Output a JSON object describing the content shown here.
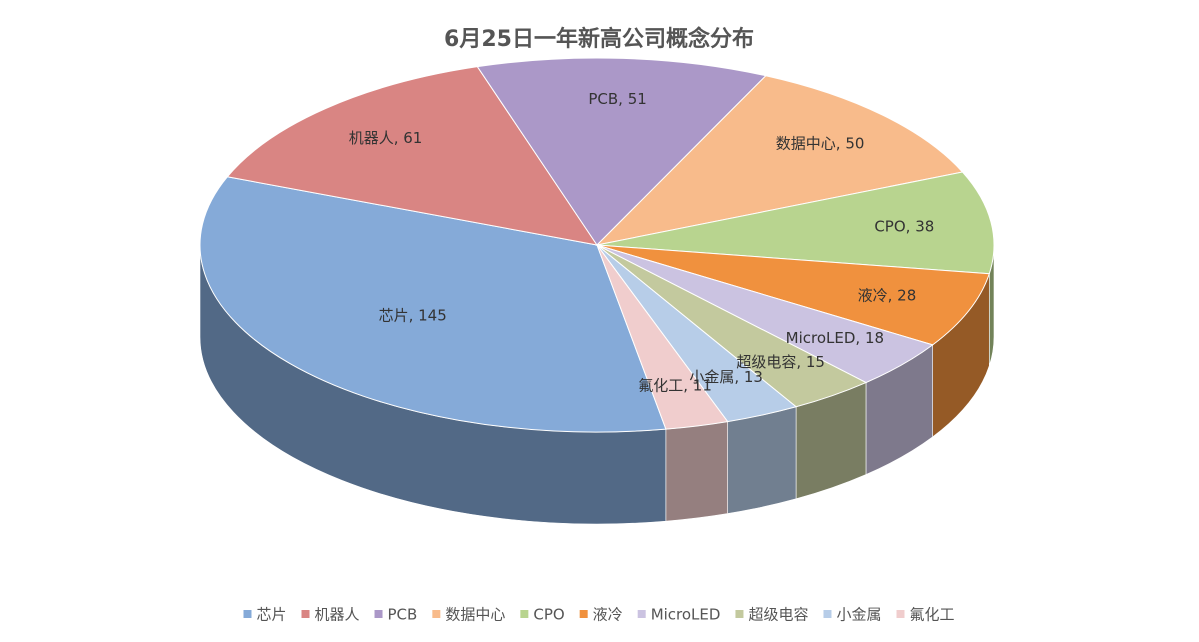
{
  "chart_data": {
    "type": "pie3d",
    "title": "6月25日一年新高公司概念分布",
    "categories": [
      "芯片",
      "机器人",
      "PCB",
      "数据中心",
      "CPO",
      "液冷",
      "MicroLED",
      "超级电容",
      "小金属",
      "氟化工"
    ],
    "values": [
      145,
      61,
      51,
      50,
      38,
      28,
      18,
      15,
      13,
      11
    ],
    "value_labels": [
      "芯片, 145",
      "机器人, 61",
      "PCB, 51",
      "数据中心, 50",
      "CPO, 38",
      "液冷, 28",
      "MicroLED, 18",
      "超级电容, 15",
      "小金属, 13",
      "氟化工, 11"
    ],
    "colors": [
      "#85aad8",
      "#d98583",
      "#ab98c8",
      "#f8bb8b",
      "#b8d48f",
      "#f0913e",
      "#cbc3e1",
      "#c3c99e",
      "#b7cde8",
      "#f0cdcd"
    ],
    "legend": "bottom"
  }
}
